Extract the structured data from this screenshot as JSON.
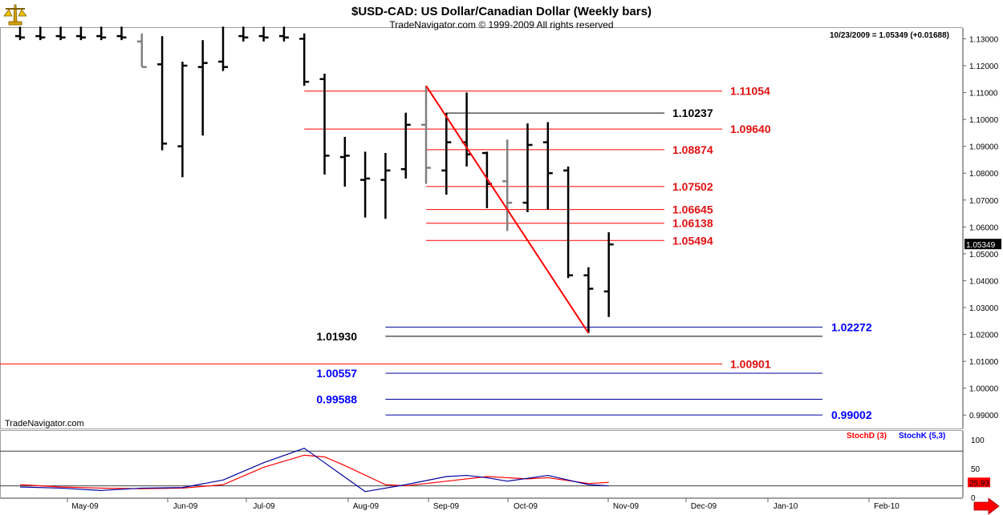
{
  "header": {
    "title": "$USD-CAD:  US Dollar/Canadian Dollar  (Weekly bars)",
    "subtitle": "TradeNavigator.com © 1999-2009 All rights reserved",
    "price_readout": "10/23/2009 = 1.05349 (+0.01688)",
    "watermark": "TradeNavigator.com"
  },
  "colors": {
    "bar": "#000000",
    "bar_gray": "#808080",
    "red": "#ff0000",
    "red_label": "#e01010",
    "blue": "#0000a0",
    "blue_label": "#0000ff",
    "stoch_d": "#ff0000",
    "stoch_k": "#0000ff",
    "frame": "#808080"
  },
  "icons": {
    "logo": "scales-icon",
    "nav_right": "right-arrow-icon"
  },
  "chart_data": [
    {
      "type": "bar",
      "subtype": "ohlc",
      "title": "$USD-CAD:  US Dollar/Canadian Dollar  (Weekly bars)",
      "x_labels": [
        "May-09",
        "Jun-09",
        "Jul-09",
        "Aug-09",
        "Sep-09",
        "Oct-09",
        "Nov-09",
        "Dec-09",
        "Jan-10",
        "Feb-10"
      ],
      "ylim": [
        0.985,
        1.134
      ],
      "y_ticks": [
        "1.13000",
        "1.12000",
        "1.11000",
        "1.10000",
        "1.09000",
        "1.08000",
        "1.07000",
        "1.06000",
        "1.05000",
        "1.04000",
        "1.03000",
        "1.02000",
        "1.01000",
        "1.00000",
        "0.99000"
      ],
      "last_price_label": "1.05349",
      "bars": [
        {
          "week": 0,
          "high": 1.1345,
          "low": 1.1295,
          "open": 1.131,
          "close": 1.1305,
          "color": "black"
        },
        {
          "week": 1,
          "high": 1.1345,
          "low": 1.1295,
          "open": 1.131,
          "close": 1.1305,
          "color": "black"
        },
        {
          "week": 2,
          "high": 1.1345,
          "low": 1.1295,
          "open": 1.131,
          "close": 1.1305,
          "color": "black"
        },
        {
          "week": 3,
          "high": 1.1345,
          "low": 1.1295,
          "open": 1.131,
          "close": 1.1305,
          "color": "black"
        },
        {
          "week": 4,
          "high": 1.1345,
          "low": 1.1295,
          "open": 1.131,
          "close": 1.1305,
          "color": "black"
        },
        {
          "week": 5,
          "high": 1.1345,
          "low": 1.1295,
          "open": 1.131,
          "close": 1.1305,
          "color": "black"
        },
        {
          "week": 6,
          "high": 1.132,
          "low": 1.1195,
          "open": 1.129,
          "close": 1.1195,
          "color": "gray"
        },
        {
          "week": 7,
          "high": 1.131,
          "low": 1.0885,
          "open": 1.1205,
          "close": 1.091,
          "color": "black"
        },
        {
          "week": 8,
          "high": 1.1215,
          "low": 1.0785,
          "open": 1.09,
          "close": 1.12,
          "color": "black"
        },
        {
          "week": 9,
          "high": 1.1295,
          "low": 1.094,
          "open": 1.1195,
          "close": 1.121,
          "color": "black"
        },
        {
          "week": 10,
          "high": 1.1345,
          "low": 1.118,
          "open": 1.1215,
          "close": 1.1195,
          "color": "black"
        },
        {
          "week": 11,
          "high": 1.1345,
          "low": 1.129,
          "open": 1.131,
          "close": 1.1305,
          "color": "black"
        },
        {
          "week": 12,
          "high": 1.1345,
          "low": 1.129,
          "open": 1.131,
          "close": 1.1305,
          "color": "black"
        },
        {
          "week": 13,
          "high": 1.1345,
          "low": 1.129,
          "open": 1.131,
          "close": 1.1305,
          "color": "black"
        },
        {
          "week": 14,
          "high": 1.132,
          "low": 1.1125,
          "open": 1.13,
          "close": 1.114,
          "color": "black"
        },
        {
          "week": 15,
          "high": 1.117,
          "low": 1.0795,
          "open": 1.115,
          "close": 1.0865,
          "color": "black"
        },
        {
          "week": 16,
          "high": 1.0935,
          "low": 1.075,
          "open": 1.086,
          "close": 1.0865,
          "color": "black"
        },
        {
          "week": 17,
          "high": 1.088,
          "low": 1.0635,
          "open": 1.0775,
          "close": 1.078,
          "color": "black"
        },
        {
          "week": 18,
          "high": 1.0875,
          "low": 1.063,
          "open": 1.0775,
          "close": 1.081,
          "color": "black"
        },
        {
          "week": 19,
          "high": 1.1025,
          "low": 1.078,
          "open": 1.0815,
          "close": 1.098,
          "color": "black"
        },
        {
          "week": 20,
          "high": 1.1125,
          "low": 1.076,
          "open": 1.098,
          "close": 1.082,
          "color": "gray"
        },
        {
          "week": 21,
          "high": 1.1025,
          "low": 1.072,
          "open": 1.081,
          "close": 1.0915,
          "color": "black"
        },
        {
          "week": 22,
          "high": 1.11,
          "low": 1.0825,
          "open": 1.0915,
          "close": 1.087,
          "color": "black"
        },
        {
          "week": 23,
          "high": 1.088,
          "low": 1.067,
          "open": 1.0875,
          "close": 1.076,
          "color": "black"
        },
        {
          "week": 24,
          "high": 1.0925,
          "low": 1.0585,
          "open": 1.077,
          "close": 1.069,
          "color": "gray"
        },
        {
          "week": 25,
          "high": 1.0985,
          "low": 1.0655,
          "open": 1.069,
          "close": 1.0905,
          "color": "black"
        },
        {
          "week": 26,
          "high": 1.099,
          "low": 1.0665,
          "open": 1.0915,
          "close": 1.08,
          "color": "black"
        },
        {
          "week": 27,
          "high": 1.0825,
          "low": 1.041,
          "open": 1.081,
          "close": 1.042,
          "color": "black"
        },
        {
          "week": 28,
          "high": 1.045,
          "low": 1.0205,
          "open": 1.042,
          "close": 1.037,
          "color": "black"
        },
        {
          "week": 29,
          "high": 1.058,
          "low": 1.0265,
          "open": 1.036,
          "close": 1.0535,
          "color": "black"
        }
      ],
      "trend_line": {
        "from": {
          "week": 20,
          "value": 1.1125
        },
        "to": {
          "week": 28,
          "value": 1.0205
        }
      },
      "levels": [
        {
          "value": 1.11054,
          "label": "1.11054",
          "color": "red",
          "from_week": 14,
          "label_side": "right"
        },
        {
          "value": 1.10237,
          "label": "1.10237",
          "color": "black",
          "from_week": 21,
          "label_side": "right"
        },
        {
          "value": 1.0964,
          "label": "1.09640",
          "color": "red",
          "from_week": 14,
          "label_side": "right"
        },
        {
          "value": 1.08874,
          "label": "1.08874",
          "color": "red",
          "from_week": 20,
          "label_side": "right"
        },
        {
          "value": 1.07502,
          "label": "1.07502",
          "color": "red",
          "from_week": 20,
          "label_side": "right"
        },
        {
          "value": 1.06645,
          "label": "1.06645",
          "color": "red",
          "from_week": 20,
          "label_side": "right"
        },
        {
          "value": 1.06138,
          "label": "1.06138",
          "color": "red",
          "from_week": 20,
          "label_side": "right"
        },
        {
          "value": 1.05494,
          "label": "1.05494",
          "color": "red",
          "from_week": 20,
          "label_side": "right"
        },
        {
          "value": 1.02272,
          "label": "1.02272",
          "color": "blue",
          "from_week": 18,
          "label_side": "right"
        },
        {
          "value": 1.0193,
          "label": "1.01930",
          "color": "black",
          "from_week": 18,
          "label_side": "left"
        },
        {
          "value": 1.00901,
          "label": "1.00901",
          "color": "red",
          "from_week": 0,
          "label_side": "right"
        },
        {
          "value": 1.00557,
          "label": "1.00557",
          "color": "blue",
          "from_week": 18,
          "label_side": "left"
        },
        {
          "value": 0.99588,
          "label": "0.99588",
          "color": "blue",
          "from_week": 18,
          "label_side": "left"
        },
        {
          "value": 0.99002,
          "label": "0.99002",
          "color": "blue",
          "from_week": 18,
          "label_side": "right"
        }
      ]
    },
    {
      "type": "line",
      "title": "",
      "legend": [
        "StochD (3)",
        "StochK (5,3)"
      ],
      "ylim": [
        0,
        115
      ],
      "y_ticks": [
        "100",
        "50",
        "0"
      ],
      "ref_lines": [
        80,
        20
      ],
      "last_value_label": "25.93",
      "series": [
        {
          "name": "StochD (3)",
          "color": "red",
          "points": [
            [
              0,
              22
            ],
            [
              2,
              18
            ],
            [
              4,
              16
            ],
            [
              6,
              15
            ],
            [
              8,
              16
            ],
            [
              10,
              22
            ],
            [
              12,
              52
            ],
            [
              14,
              73
            ],
            [
              15,
              70
            ],
            [
              16,
              55
            ],
            [
              18,
              22
            ],
            [
              19,
              20
            ],
            [
              21,
              28
            ],
            [
              23,
              36
            ],
            [
              25,
              32
            ],
            [
              26,
              34
            ],
            [
              28,
              24
            ],
            [
              29,
              25.93
            ]
          ]
        },
        {
          "name": "StochK (5,3)",
          "color": "blue",
          "points": [
            [
              0,
              18
            ],
            [
              2,
              16
            ],
            [
              4,
              12
            ],
            [
              6,
              16
            ],
            [
              8,
              17
            ],
            [
              10,
              30
            ],
            [
              12,
              60
            ],
            [
              14,
              85
            ],
            [
              15,
              60
            ],
            [
              16,
              35
            ],
            [
              17,
              10
            ],
            [
              19,
              22
            ],
            [
              21,
              36
            ],
            [
              22,
              38
            ],
            [
              23,
              34
            ],
            [
              24,
              28
            ],
            [
              26,
              38
            ],
            [
              28,
              22
            ],
            [
              29,
              20
            ]
          ]
        }
      ]
    }
  ]
}
